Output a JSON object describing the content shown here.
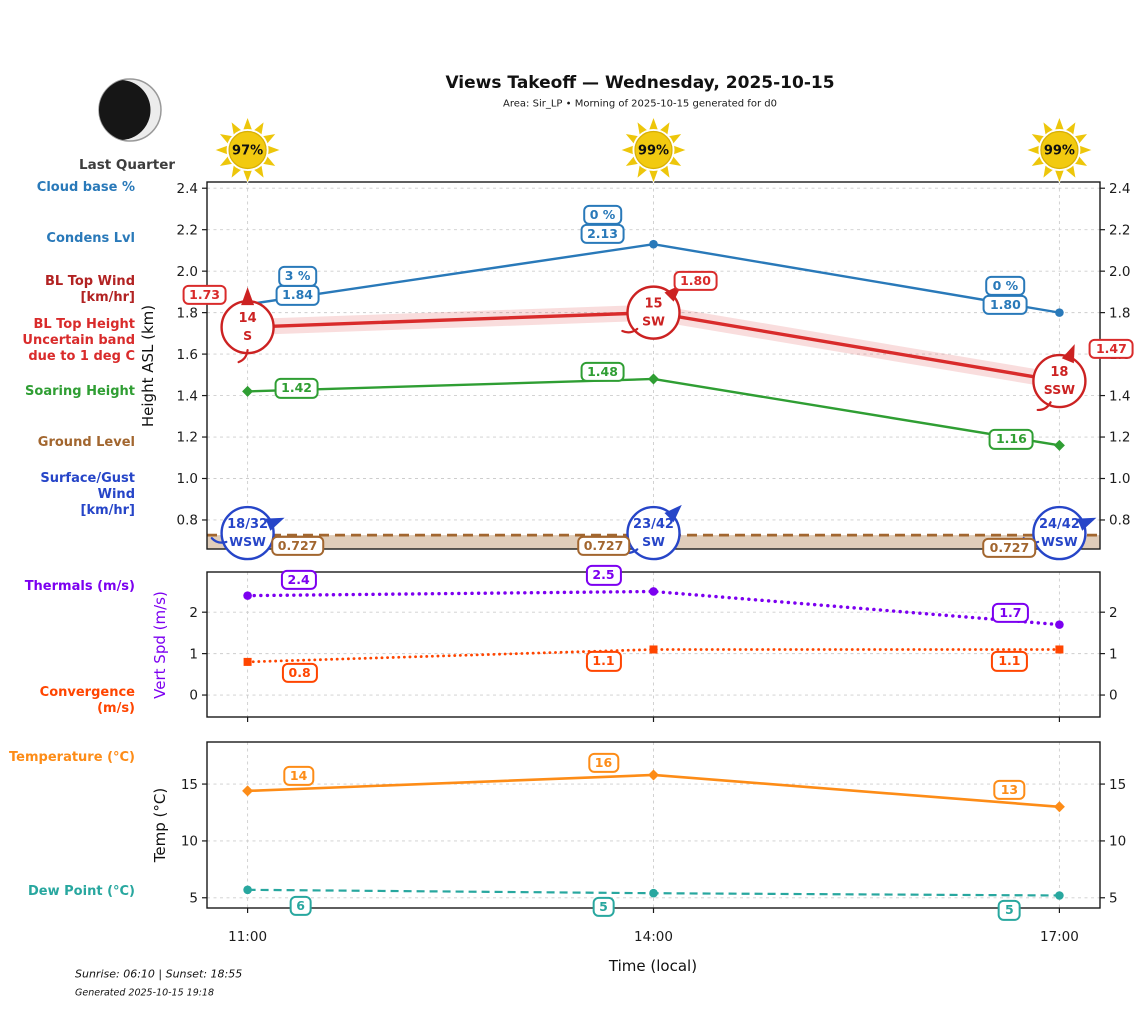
{
  "header": {
    "title": "Views Takeoff — Wednesday, 2025-10-15",
    "subtitle": "Area: Sir_LP • Morning of 2025-10-15 generated for d0",
    "moon_phase": "Last Quarter"
  },
  "suns": {
    "cloud_free_pct": [
      "97%",
      "99%",
      "99%"
    ]
  },
  "left_labels": [
    {
      "lines": [
        "Cloud base %"
      ],
      "color": "#2979b9"
    },
    {
      "lines": [
        "Condens Lvl"
      ],
      "color": "#2979b9"
    },
    {
      "lines": [
        "BL Top Wind",
        "[km/hr]"
      ],
      "color": "#b22222"
    },
    {
      "lines": [
        "BL Top Height",
        "Uncertain band",
        "due to 1 deg C"
      ],
      "color": "#d92b2b"
    },
    {
      "lines": [
        "Soaring Height"
      ],
      "color": "#2f9e33"
    },
    {
      "lines": [
        "Ground Level"
      ],
      "color": "#a2662f"
    },
    {
      "lines": [
        "Surface/Gust Wind",
        "[km/hr]"
      ],
      "color": "#2645c8"
    },
    {
      "lines": [
        "Thermals (m/s)"
      ],
      "color": "#7c00f0"
    },
    {
      "lines": [
        "Convergence (m/s)"
      ],
      "color": "#ff4500"
    },
    {
      "lines": [
        "Temperature (°C)"
      ],
      "color": "#fd8c17"
    },
    {
      "lines": [
        "Dew Point (°C)"
      ],
      "color": "#28a79f"
    }
  ],
  "xaxis": {
    "label": "Time (local)",
    "ticks": [
      "11:00",
      "14:00",
      "17:00"
    ],
    "hours": [
      11,
      14,
      17
    ]
  },
  "footer": {
    "sun_times": "Sunrise: 06:10 | Sunset: 18:55",
    "generated": "Generated 2025-10-15 19:18"
  },
  "chart_data": [
    {
      "type": "line",
      "ylabel": "Height ASL (km)",
      "ylabel_color": "#111111",
      "ylim": [
        0.66,
        2.43
      ],
      "yticks": [
        0.8,
        1.0,
        1.2,
        1.4,
        1.6,
        1.8,
        2.0,
        2.2,
        2.4
      ],
      "ytick_labels": [
        "0.8",
        "1.0",
        "1.2",
        "1.4",
        "1.6",
        "1.8",
        "2.0",
        "2.2",
        "2.4"
      ],
      "x_hours": [
        11,
        14,
        17
      ],
      "series": [
        {
          "name": "Condens Lvl",
          "color": "#2979b9",
          "style": "solid",
          "marker": "circle",
          "values": [
            1.84,
            2.13,
            1.8
          ],
          "labels": [
            "1.84",
            "2.13",
            "1.80"
          ],
          "cloud_base_pct": [
            "3 %",
            "0 %",
            "0 %"
          ]
        },
        {
          "name": "BL Top Height",
          "color": "#d92b2b",
          "style": "solid",
          "marker": "none",
          "band": true,
          "values": [
            1.73,
            1.8,
            1.47
          ],
          "labels": [
            "1.73",
            "1.80",
            "1.47"
          ]
        },
        {
          "name": "Soaring Height",
          "color": "#2f9e33",
          "style": "solid",
          "marker": "diamond",
          "values": [
            1.42,
            1.48,
            1.16
          ],
          "labels": [
            "1.42",
            "1.48",
            "1.16"
          ]
        },
        {
          "name": "Ground Level",
          "color": "#a2662f",
          "style": "dashed",
          "marker": "none",
          "fill_below": true,
          "values": [
            0.727,
            0.727,
            0.727
          ],
          "labels": [
            "0.727",
            "0.727",
            "0.727"
          ]
        }
      ],
      "wind_bl_top": {
        "name": "BL Top Wind [km/hr]",
        "color": "#cc2222",
        "items": [
          {
            "speed": "14",
            "dir": "S"
          },
          {
            "speed": "15",
            "dir": "SW"
          },
          {
            "speed": "18",
            "dir": "SSW"
          }
        ]
      },
      "wind_surface": {
        "name": "Surface/Gust Wind [km/hr]",
        "color": "#2645c8",
        "items": [
          {
            "speed": "18/32",
            "dir": "WSW"
          },
          {
            "speed": "23/42",
            "dir": "SW"
          },
          {
            "speed": "24/42",
            "dir": "WSW"
          }
        ]
      }
    },
    {
      "type": "line",
      "ylabel": "Vert Spd (m/s)",
      "ylabel_color": "#7c00f0",
      "ylim": [
        -0.53,
        2.97
      ],
      "yticks": [
        0,
        1,
        2
      ],
      "ytick_labels": [
        "0",
        "1",
        "2"
      ],
      "x_hours": [
        11,
        14,
        17
      ],
      "series": [
        {
          "name": "Thermals (m/s)",
          "color": "#7c00f0",
          "style": "dotted",
          "marker": "circle",
          "values": [
            2.4,
            2.5,
            1.7
          ],
          "labels": [
            "2.4",
            "2.5",
            "1.7"
          ]
        },
        {
          "name": "Convergence (m/s)",
          "color": "#ff4500",
          "style": "dotted",
          "marker": "square",
          "values": [
            0.8,
            1.1,
            1.1
          ],
          "labels": [
            "0.8",
            "1.1",
            "1.1"
          ]
        }
      ]
    },
    {
      "type": "line",
      "ylabel": "Temp (°C)",
      "ylabel_color": "#111111",
      "ylim": [
        4.1,
        18.7
      ],
      "yticks": [
        5,
        10,
        15
      ],
      "ytick_labels": [
        "5",
        "10",
        "15"
      ],
      "x_hours": [
        11,
        14,
        17
      ],
      "series": [
        {
          "name": "Temperature (°C)",
          "color": "#fd8c17",
          "style": "solid",
          "marker": "diamond",
          "values": [
            14.4,
            15.8,
            13.0
          ],
          "labels": [
            "14",
            "16",
            "13"
          ]
        },
        {
          "name": "Dew Point (°C)",
          "color": "#28a79f",
          "style": "dashed",
          "marker": "circle",
          "values": [
            5.7,
            5.4,
            5.2
          ],
          "labels": [
            "6",
            "5",
            "5"
          ]
        }
      ]
    }
  ]
}
